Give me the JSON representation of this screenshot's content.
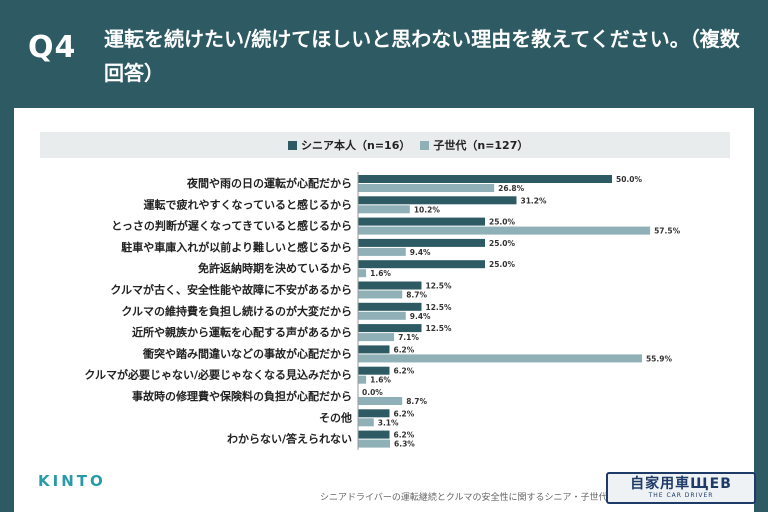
{
  "header": {
    "qnum": "Q4",
    "title": "運転を続けたい/続けてほしいと思わない理由を教えてください。（複数回答）"
  },
  "colors": {
    "senior": "#2d5a63",
    "child": "#8fb0b6",
    "header_bg": "#2d5a63"
  },
  "chart_data": {
    "type": "bar",
    "orientation": "horizontal",
    "legend_position": "top",
    "categories": [
      "夜間や雨の日の運転が心配だから",
      "運転で疲れやすくなっていると感じるから",
      "とっさの判断が遅くなってきていると感じるから",
      "駐車や車庫入れが以前より難しいと感じるから",
      "免許返納時期を決めているから",
      "クルマが古く、安全性能や故障に不安があるから",
      "クルマの維持費を負担し続けるのが大変だから",
      "近所や親族から運転を心配する声があるから",
      "衝突や踏み間違いなどの事故が心配だから",
      "クルマが必要じゃない/必要じゃなくなる見込みだから",
      "事故時の修理費や保険料の負担が心配だから",
      "その他",
      "わからない/答えられない"
    ],
    "series": [
      {
        "name": "シニア本人（n=16）",
        "values": [
          50.0,
          31.2,
          25.0,
          25.0,
          25.0,
          12.5,
          12.5,
          12.5,
          6.2,
          6.2,
          0.0,
          6.2,
          6.2
        ]
      },
      {
        "name": "子世代（n=127）",
        "values": [
          26.8,
          10.2,
          57.5,
          9.4,
          1.6,
          8.7,
          9.4,
          7.1,
          55.9,
          1.6,
          8.7,
          3.1,
          6.3
        ]
      }
    ],
    "value_labels": [
      [
        "50.0%",
        "31.2%",
        "25.0%",
        "25.0%",
        "25.0%",
        "12.5%",
        "12.5%",
        "12.5%",
        "6.2%",
        "6.2%",
        "0.0%",
        "6.2%",
        "6.2%"
      ],
      [
        "26.8%",
        "10.2%",
        "57.5%",
        "9.4%",
        "1.6%",
        "8.7%",
        "9.4%",
        "7.1%",
        "55.9%",
        "1.6%",
        "8.7%",
        "3.1%",
        "6.3%"
      ]
    ]
  },
  "footer": {
    "logo": "KINTO",
    "note": "シニアドライバーの運転継続とクルマの安全性に関するシニア・子世代の意識調査",
    "badge_main": "自家用車ЩEB",
    "badge_sub": "THE CAR DRIVER"
  }
}
